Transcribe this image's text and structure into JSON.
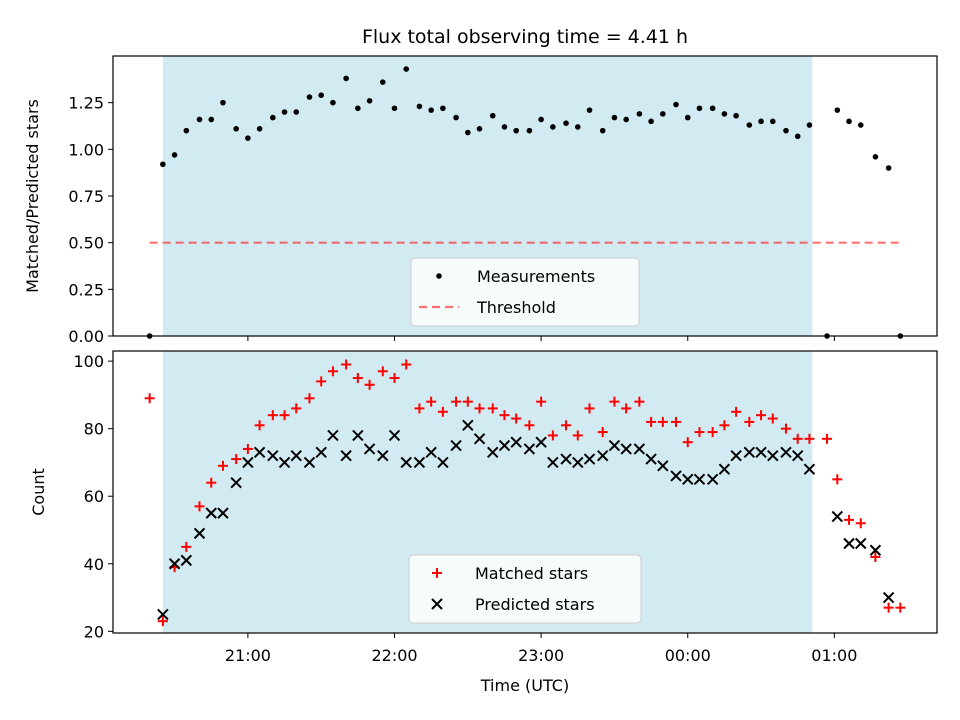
{
  "title": "Flux total observing time = 4.41 h",
  "colors": {
    "shade": "#add8e6",
    "measure": "#000000",
    "threshold": "#ff0000",
    "matched": "#ff0000",
    "predicted": "#000000"
  },
  "x_ticks": [
    "21:00",
    "22:00",
    "23:00",
    "00:00",
    "01:00"
  ],
  "xlabel": "Time (UTC)",
  "chart_data": [
    {
      "type": "scatter",
      "title": "Flux total observing time = 4.41 h",
      "ylabel": "Matched/Predicted stars",
      "xlabel": "",
      "x_unit": "hours since 21:00 UTC",
      "xlim": [
        -0.92,
        4.7
      ],
      "ylim": [
        0,
        1.5
      ],
      "yticks": [
        "0.00",
        "0.25",
        "0.50",
        "0.75",
        "1.00",
        "1.25"
      ],
      "observing_window": [
        -0.58,
        3.85
      ],
      "threshold": 0.5,
      "legend": {
        "placement": "lower center",
        "entries": [
          "Measurements",
          "Threshold"
        ]
      },
      "series": [
        {
          "name": "Measurements",
          "marker": "dot",
          "points": [
            [
              -0.67,
              0.0
            ],
            [
              -0.58,
              0.92
            ],
            [
              -0.5,
              0.97
            ],
            [
              -0.42,
              1.1
            ],
            [
              -0.33,
              1.16
            ],
            [
              -0.25,
              1.16
            ],
            [
              -0.17,
              1.25
            ],
            [
              -0.08,
              1.11
            ],
            [
              0.0,
              1.06
            ],
            [
              0.08,
              1.11
            ],
            [
              0.17,
              1.17
            ],
            [
              0.25,
              1.2
            ],
            [
              0.33,
              1.2
            ],
            [
              0.42,
              1.28
            ],
            [
              0.5,
              1.29
            ],
            [
              0.58,
              1.25
            ],
            [
              0.67,
              1.38
            ],
            [
              0.75,
              1.22
            ],
            [
              0.83,
              1.26
            ],
            [
              0.92,
              1.36
            ],
            [
              1.0,
              1.22
            ],
            [
              1.08,
              1.43
            ],
            [
              1.17,
              1.23
            ],
            [
              1.25,
              1.21
            ],
            [
              1.33,
              1.22
            ],
            [
              1.42,
              1.17
            ],
            [
              1.5,
              1.09
            ],
            [
              1.58,
              1.11
            ],
            [
              1.67,
              1.18
            ],
            [
              1.75,
              1.12
            ],
            [
              1.83,
              1.1
            ],
            [
              1.92,
              1.1
            ],
            [
              2.0,
              1.16
            ],
            [
              2.08,
              1.12
            ],
            [
              2.17,
              1.14
            ],
            [
              2.25,
              1.12
            ],
            [
              2.33,
              1.21
            ],
            [
              2.42,
              1.1
            ],
            [
              2.5,
              1.17
            ],
            [
              2.58,
              1.16
            ],
            [
              2.67,
              1.19
            ],
            [
              2.75,
              1.15
            ],
            [
              2.83,
              1.19
            ],
            [
              2.92,
              1.24
            ],
            [
              3.0,
              1.17
            ],
            [
              3.08,
              1.22
            ],
            [
              3.17,
              1.22
            ],
            [
              3.25,
              1.19
            ],
            [
              3.33,
              1.18
            ],
            [
              3.42,
              1.13
            ],
            [
              3.5,
              1.15
            ],
            [
              3.58,
              1.15
            ],
            [
              3.67,
              1.1
            ],
            [
              3.75,
              1.07
            ],
            [
              3.83,
              1.13
            ],
            [
              3.95,
              0.0
            ],
            [
              4.02,
              1.21
            ],
            [
              4.1,
              1.15
            ],
            [
              4.18,
              1.13
            ],
            [
              4.28,
              0.96
            ],
            [
              4.37,
              0.9
            ],
            [
              4.45,
              0.0
            ]
          ]
        }
      ]
    },
    {
      "type": "scatter",
      "title": "",
      "ylabel": "Count",
      "xlabel": "Time (UTC)",
      "x_unit": "hours since 21:00 UTC",
      "xlim": [
        -0.92,
        4.7
      ],
      "ylim": [
        19.5,
        103
      ],
      "yticks": [
        "20",
        "40",
        "60",
        "80",
        "100"
      ],
      "observing_window": [
        -0.58,
        3.85
      ],
      "legend": {
        "placement": "lower center",
        "entries": [
          "Matched stars",
          "Predicted stars"
        ]
      },
      "series": [
        {
          "name": "Matched stars",
          "marker": "plus",
          "points": [
            [
              -0.67,
              89
            ],
            [
              -0.58,
              23
            ],
            [
              -0.5,
              39
            ],
            [
              -0.42,
              45
            ],
            [
              -0.33,
              57
            ],
            [
              -0.25,
              64
            ],
            [
              -0.17,
              69
            ],
            [
              -0.08,
              71
            ],
            [
              0.0,
              74
            ],
            [
              0.08,
              81
            ],
            [
              0.17,
              84
            ],
            [
              0.25,
              84
            ],
            [
              0.33,
              86
            ],
            [
              0.42,
              89
            ],
            [
              0.5,
              94
            ],
            [
              0.58,
              97
            ],
            [
              0.67,
              99
            ],
            [
              0.75,
              95
            ],
            [
              0.83,
              93
            ],
            [
              0.92,
              97
            ],
            [
              1.0,
              95
            ],
            [
              1.08,
              99
            ],
            [
              1.17,
              86
            ],
            [
              1.25,
              88
            ],
            [
              1.33,
              85
            ],
            [
              1.42,
              88
            ],
            [
              1.5,
              88
            ],
            [
              1.58,
              86
            ],
            [
              1.67,
              86
            ],
            [
              1.75,
              84
            ],
            [
              1.83,
              83
            ],
            [
              1.92,
              81
            ],
            [
              2.0,
              88
            ],
            [
              2.08,
              78
            ],
            [
              2.17,
              81
            ],
            [
              2.25,
              78
            ],
            [
              2.33,
              86
            ],
            [
              2.42,
              79
            ],
            [
              2.5,
              88
            ],
            [
              2.58,
              86
            ],
            [
              2.67,
              88
            ],
            [
              2.75,
              82
            ],
            [
              2.83,
              82
            ],
            [
              2.92,
              82
            ],
            [
              3.0,
              76
            ],
            [
              3.08,
              79
            ],
            [
              3.17,
              79
            ],
            [
              3.25,
              81
            ],
            [
              3.33,
              85
            ],
            [
              3.42,
              82
            ],
            [
              3.5,
              84
            ],
            [
              3.58,
              83
            ],
            [
              3.67,
              80
            ],
            [
              3.75,
              77
            ],
            [
              3.83,
              77
            ],
            [
              3.95,
              77
            ],
            [
              4.02,
              65
            ],
            [
              4.1,
              53
            ],
            [
              4.18,
              52
            ],
            [
              4.28,
              42
            ],
            [
              4.37,
              27
            ],
            [
              4.45,
              27
            ]
          ]
        },
        {
          "name": "Predicted stars",
          "marker": "x",
          "points": [
            [
              -0.58,
              25
            ],
            [
              -0.5,
              40
            ],
            [
              -0.42,
              41
            ],
            [
              -0.33,
              49
            ],
            [
              -0.25,
              55
            ],
            [
              -0.17,
              55
            ],
            [
              -0.08,
              64
            ],
            [
              0.0,
              70
            ],
            [
              0.08,
              73
            ],
            [
              0.17,
              72
            ],
            [
              0.25,
              70
            ],
            [
              0.33,
              72
            ],
            [
              0.42,
              70
            ],
            [
              0.5,
              73
            ],
            [
              0.58,
              78
            ],
            [
              0.67,
              72
            ],
            [
              0.75,
              78
            ],
            [
              0.83,
              74
            ],
            [
              0.92,
              72
            ],
            [
              1.0,
              78
            ],
            [
              1.08,
              70
            ],
            [
              1.17,
              70
            ],
            [
              1.25,
              73
            ],
            [
              1.33,
              70
            ],
            [
              1.42,
              75
            ],
            [
              1.5,
              81
            ],
            [
              1.58,
              77
            ],
            [
              1.67,
              73
            ],
            [
              1.75,
              75
            ],
            [
              1.83,
              76
            ],
            [
              1.92,
              74
            ],
            [
              2.0,
              76
            ],
            [
              2.08,
              70
            ],
            [
              2.17,
              71
            ],
            [
              2.25,
              70
            ],
            [
              2.33,
              71
            ],
            [
              2.42,
              72
            ],
            [
              2.5,
              75
            ],
            [
              2.58,
              74
            ],
            [
              2.67,
              74
            ],
            [
              2.75,
              71
            ],
            [
              2.83,
              69
            ],
            [
              2.92,
              66
            ],
            [
              3.0,
              65
            ],
            [
              3.08,
              65
            ],
            [
              3.17,
              65
            ],
            [
              3.25,
              68
            ],
            [
              3.33,
              72
            ],
            [
              3.42,
              73
            ],
            [
              3.5,
              73
            ],
            [
              3.58,
              72
            ],
            [
              3.67,
              73
            ],
            [
              3.75,
              72
            ],
            [
              3.83,
              68
            ],
            [
              4.02,
              54
            ],
            [
              4.1,
              46
            ],
            [
              4.18,
              46
            ],
            [
              4.28,
              44
            ],
            [
              4.37,
              30
            ]
          ]
        }
      ]
    }
  ]
}
